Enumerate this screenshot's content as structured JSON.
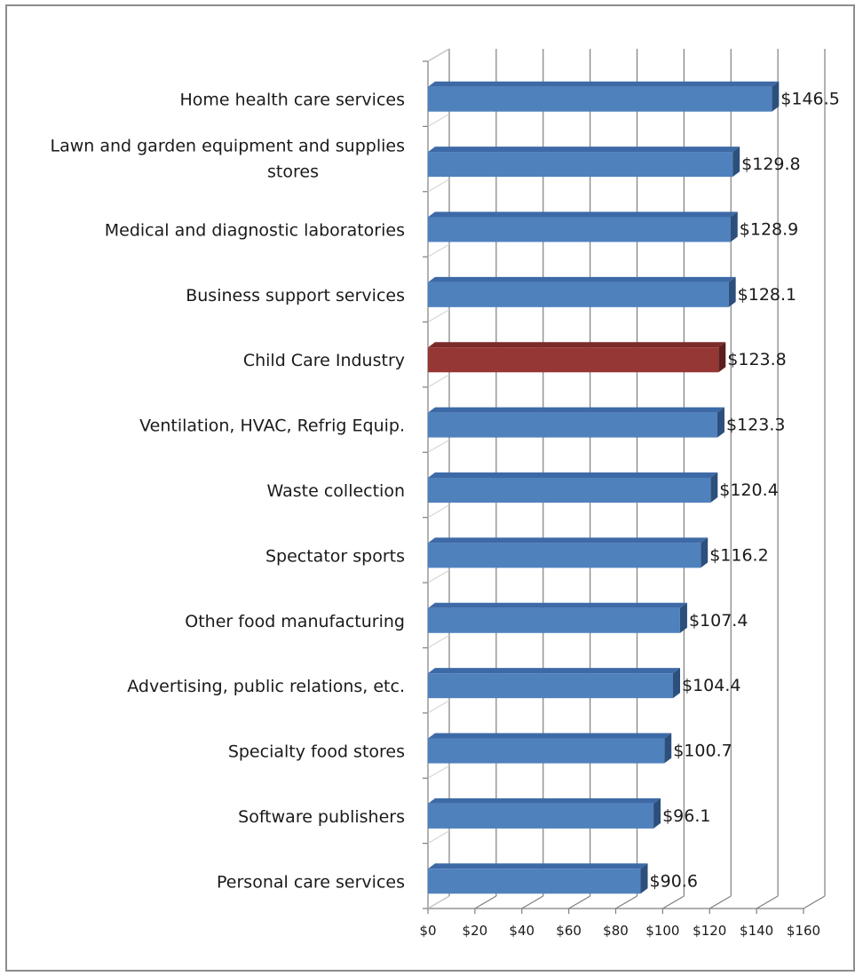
{
  "chart_data": {
    "type": "bar",
    "orientation": "horizontal",
    "title": "",
    "xlabel": "",
    "ylabel": "",
    "xlim": [
      0,
      160
    ],
    "grid": true,
    "legend": "none",
    "tick_labels": [
      "$0",
      "$20",
      "$40",
      "$60",
      "$80",
      "$100",
      "$120",
      "$140",
      "$160"
    ],
    "categories": [
      [
        "Home health care services"
      ],
      [
        "Lawn and garden equipment and supplies",
        "stores"
      ],
      [
        "Medical and diagnostic laboratories"
      ],
      [
        "Business support services"
      ],
      [
        "Child Care Industry"
      ],
      [
        "Ventilation, HVAC, Refrig Equip."
      ],
      [
        "Waste collection"
      ],
      [
        "Spectator sports"
      ],
      [
        "Other food manufacturing"
      ],
      [
        "Advertising, public relations, etc."
      ],
      [
        "Specialty food stores"
      ],
      [
        "Software publishers"
      ],
      [
        "Personal care services"
      ]
    ],
    "values": [
      146.5,
      129.8,
      128.9,
      128.1,
      123.8,
      123.3,
      120.4,
      116.2,
      107.4,
      104.4,
      100.7,
      96.1,
      90.6
    ],
    "value_labels": [
      "$146.5",
      "$129.8",
      "$128.9",
      "$128.1",
      "$123.8",
      "$123.3",
      "$120.4",
      "$116.2",
      "$107.4",
      "$104.4",
      "$100.7",
      "$96.1",
      "$90.6"
    ],
    "highlight_index": 4,
    "colors": {
      "bar": "#4f81bd",
      "bar_top": "#3d6aa6",
      "bar_side": "#2c4f7c",
      "highlight": "#953735",
      "highlight_top": "#7a2a28",
      "highlight_side": "#5c1f1e",
      "grid": "#7f7f7f"
    }
  }
}
